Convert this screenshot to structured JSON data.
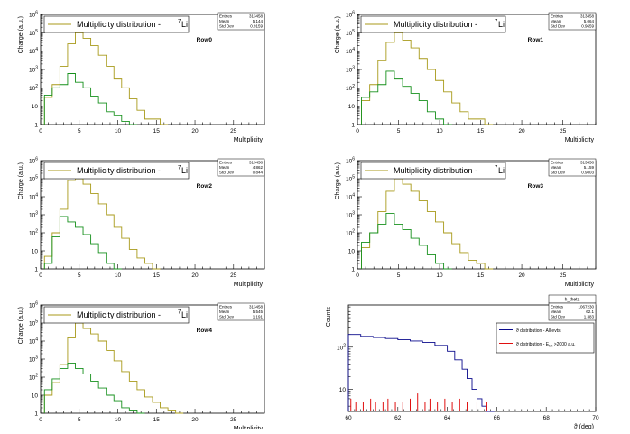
{
  "colors": {
    "olive": "#a89a1a",
    "green": "#16901c",
    "navy": "#0a0a8c",
    "red": "#e01010"
  },
  "chart_data": [
    {
      "type": "line",
      "scale": "log",
      "title": "Multiplicity distribution -  ⁷Li",
      "legend_label": "Multiplicity distribution -",
      "legend_sup": "7",
      "legend_elem": "Li",
      "row_label": "Row0",
      "xlabel": "Multiplicity",
      "ylabel": "Charge (a.u.)",
      "xlim": [
        0,
        29
      ],
      "ylim": [
        1,
        1000000
      ],
      "xticks": [
        0,
        5,
        10,
        15,
        20,
        25
      ],
      "yticks": [
        1,
        10,
        100,
        1000,
        10000,
        100000,
        1000000
      ],
      "stats": {
        "entries_label": "Entries",
        "entries": "313458",
        "mean_label": "Mean",
        "mean": "5.144",
        "std_label": "Std Dev",
        "std": "0.9159"
      },
      "series": [
        {
          "color": "olive",
          "x": [
            1,
            2,
            3,
            4,
            5,
            6,
            7,
            8,
            9,
            10,
            11,
            12,
            13,
            14,
            15,
            16
          ],
          "values": [
            30,
            150,
            1500,
            25000,
            100000,
            50000,
            20000,
            6000,
            1500,
            300,
            100,
            25,
            6,
            2,
            2,
            1
          ]
        },
        {
          "color": "green",
          "x": [
            1,
            2,
            3,
            4,
            5,
            6,
            7,
            8,
            9,
            10,
            11,
            12
          ],
          "values": [
            40,
            100,
            150,
            600,
            200,
            100,
            35,
            15,
            5,
            3,
            1.5,
            1
          ]
        }
      ]
    },
    {
      "type": "line",
      "scale": "log",
      "title": "Multiplicity distribution -  ⁷Li",
      "legend_label": "Multiplicity distribution -",
      "legend_sup": "7",
      "legend_elem": "Li",
      "row_label": "Row1",
      "xlabel": "Multiplicity",
      "ylabel": "Charge (a.u.)",
      "xlim": [
        0,
        29
      ],
      "ylim": [
        1,
        1000000
      ],
      "xticks": [
        0,
        5,
        10,
        15,
        20,
        25
      ],
      "yticks": [
        1,
        10,
        100,
        1000,
        10000,
        100000,
        1000000
      ],
      "stats": {
        "entries_label": "Entries",
        "entries": "313458",
        "mean_label": "Mean",
        "mean": "5.064",
        "std_label": "Std Dev",
        "std": "0.9659"
      },
      "series": [
        {
          "color": "olive",
          "x": [
            1,
            2,
            3,
            4,
            5,
            6,
            7,
            8,
            9,
            10,
            11,
            12,
            13,
            14,
            15,
            16
          ],
          "values": [
            20,
            150,
            3000,
            30000,
            100000,
            40000,
            15000,
            4000,
            1000,
            250,
            60,
            15,
            5,
            2,
            2,
            1
          ]
        },
        {
          "color": "green",
          "x": [
            1,
            2,
            3,
            4,
            5,
            6,
            7,
            8,
            9,
            10,
            11
          ],
          "values": [
            30,
            60,
            150,
            800,
            300,
            120,
            50,
            20,
            5,
            2,
            1
          ]
        }
      ]
    },
    {
      "type": "line",
      "scale": "log",
      "title": "Multiplicity distribution -  ⁷Li",
      "legend_label": "Multiplicity distribution -",
      "legend_sup": "7",
      "legend_elem": "Li",
      "row_label": "Row2",
      "xlabel": "Multiplicity",
      "ylabel": "Charge (a.u.)",
      "xlim": [
        0,
        29
      ],
      "ylim": [
        1,
        1000000
      ],
      "xticks": [
        0,
        5,
        10,
        15,
        20,
        25
      ],
      "yticks": [
        1,
        10,
        100,
        1000,
        10000,
        100000,
        1000000
      ],
      "stats": {
        "entries_label": "Entries",
        "entries": "313458",
        "mean_label": "Mean",
        "mean": "4.862",
        "std_label": "Std Dev",
        "std": "0.844"
      },
      "series": [
        {
          "color": "olive",
          "x": [
            1,
            2,
            3,
            4,
            5,
            6,
            7,
            8,
            9,
            10,
            11,
            12,
            13,
            14,
            15
          ],
          "values": [
            5,
            100,
            2000,
            80000,
            100000,
            50000,
            15000,
            4000,
            1000,
            200,
            50,
            12,
            4,
            2,
            1
          ]
        },
        {
          "color": "green",
          "x": [
            1,
            2,
            3,
            4,
            5,
            6,
            7,
            8,
            9,
            10
          ],
          "values": [
            2,
            60,
            800,
            400,
            200,
            80,
            25,
            8,
            2,
            1
          ]
        }
      ]
    },
    {
      "type": "line",
      "scale": "log",
      "title": "Multiplicity distribution -  ⁷Li",
      "legend_label": "Multiplicity distribution -",
      "legend_sup": "7",
      "legend_elem": "Li",
      "row_label": "Row3",
      "xlabel": "Multiplicity",
      "ylabel": "Charge (a.u.)",
      "xlim": [
        0,
        29
      ],
      "ylim": [
        1,
        1000000
      ],
      "xticks": [
        0,
        5,
        10,
        15,
        20,
        25
      ],
      "yticks": [
        1,
        10,
        100,
        1000,
        10000,
        100000,
        1000000
      ],
      "stats": {
        "entries_label": "Entries",
        "entries": "313458",
        "mean_label": "Mean",
        "mean": "5.159",
        "std_label": "Std Dev",
        "std": "0.9803"
      },
      "series": [
        {
          "color": "olive",
          "x": [
            1,
            2,
            3,
            4,
            5,
            6,
            7,
            8,
            9,
            10,
            11,
            12,
            13,
            14,
            15,
            16
          ],
          "values": [
            15,
            100,
            1500,
            20000,
            100000,
            50000,
            20000,
            6000,
            1500,
            400,
            100,
            25,
            8,
            3,
            2,
            1
          ]
        },
        {
          "color": "green",
          "x": [
            1,
            2,
            3,
            4,
            5,
            6,
            7,
            8,
            9,
            10,
            11
          ],
          "values": [
            30,
            100,
            300,
            1200,
            300,
            150,
            50,
            20,
            6,
            2,
            1
          ]
        }
      ]
    },
    {
      "type": "line",
      "scale": "log",
      "title": "Multiplicity distribution -  ⁷Li",
      "legend_label": "Multiplicity distribution -",
      "legend_sup": "7",
      "legend_elem": "Li",
      "row_label": "Row4",
      "xlabel": "Multiplicity",
      "ylabel": "Charge (a.u.)",
      "xlim": [
        0,
        29
      ],
      "ylim": [
        1,
        1000000
      ],
      "xticks": [
        0,
        5,
        10,
        15,
        20,
        25
      ],
      "yticks": [
        1,
        10,
        100,
        1000,
        10000,
        100000,
        1000000
      ],
      "stats": {
        "entries_label": "Entries",
        "entries": "313458",
        "mean_label": "Mean",
        "mean": "5.545",
        "std_label": "Std Dev",
        "std": "1.191"
      },
      "series": [
        {
          "color": "olive",
          "x": [
            1,
            2,
            3,
            4,
            5,
            6,
            7,
            8,
            9,
            10,
            11,
            12,
            13,
            14,
            15,
            16,
            17,
            18
          ],
          "values": [
            10,
            50,
            500,
            15000,
            100000,
            50000,
            25000,
            10000,
            3000,
            800,
            200,
            60,
            20,
            8,
            4,
            2,
            1.5,
            1
          ]
        },
        {
          "color": "green",
          "x": [
            1,
            2,
            3,
            4,
            5,
            6,
            7,
            8,
            9,
            10,
            11,
            12,
            13
          ],
          "values": [
            20,
            80,
            300,
            600,
            300,
            150,
            60,
            25,
            10,
            5,
            2,
            1.5,
            1
          ]
        }
      ]
    },
    {
      "type": "line",
      "scale": "log",
      "title": "",
      "stats_title": "h_theta",
      "xlabel": "ϑ (deg)",
      "ylabel": "Counts",
      "xlim": [
        60,
        70
      ],
      "ylim": [
        3,
        1000
      ],
      "xticks": [
        60,
        62,
        64,
        66,
        68,
        70
      ],
      "yticks": [
        10,
        100
      ],
      "stats": {
        "entries_label": "Entries",
        "entries": "1067230",
        "mean_label": "Mean",
        "mean": "62.1",
        "std_label": "Std Dev",
        "std": "1.383"
      },
      "legend": [
        "ϑ distribution - All evts",
        "ϑ distribution - E_tot >2000 a.u."
      ],
      "legend_html": [
        {
          "text": "ϑ distribution - All evts"
        },
        {
          "text": "ϑ distribution - E",
          "sub": "tot",
          "tail": " >2000 a.u."
        }
      ],
      "series": [
        {
          "color": "navy",
          "name": "ϑ distribution - All evts",
          "x": [
            60.0,
            60.5,
            61.0,
            61.5,
            62.0,
            62.5,
            63.0,
            63.5,
            64.0,
            64.3,
            64.6,
            64.8,
            65.0,
            65.2,
            65.4,
            65.6,
            65.8
          ],
          "values": [
            200,
            180,
            170,
            160,
            150,
            140,
            130,
            110,
            80,
            50,
            30,
            18,
            10,
            6,
            4,
            3,
            3
          ]
        },
        {
          "color": "red",
          "name": "ϑ distribution - E_tot >2000 a.u.",
          "spikes": true,
          "x": [
            60.1,
            60.3,
            60.6,
            60.9,
            61.1,
            61.4,
            61.6,
            61.9,
            62.2,
            62.5,
            62.8,
            63.1,
            63.3,
            63.6,
            63.9,
            64.2,
            64.5,
            64.8,
            65.2,
            65.6
          ],
          "values": [
            6,
            5,
            5,
            6,
            5,
            5,
            6,
            5,
            5,
            6,
            8,
            5,
            6,
            5,
            6,
            5,
            6,
            5,
            5,
            5
          ]
        }
      ]
    }
  ]
}
